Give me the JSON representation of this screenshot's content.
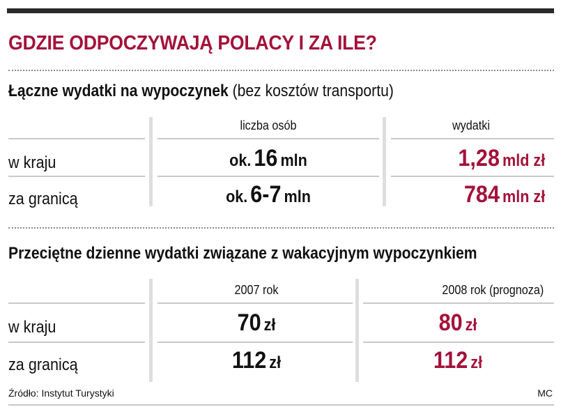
{
  "title": "GDZIE ODPOCZYWAJĄ POLACY I ZA ILE?",
  "chart_data": [
    {
      "type": "table",
      "title": "Łączne wydatki na wypoczynek",
      "subtitle": "(bez kosztów transportu)",
      "columns": [
        "liczba osób",
        "wydatki"
      ],
      "rows": [
        {
          "label": "w kraju",
          "cells": [
            {
              "prefix": "ok.",
              "value": "16",
              "unit": "mln"
            },
            {
              "prefix": "",
              "value": "1,28",
              "unit": "mld zł"
            }
          ]
        },
        {
          "label": "za granicą",
          "cells": [
            {
              "prefix": "ok.",
              "value": "6-7",
              "unit": "mln"
            },
            {
              "prefix": "",
              "value": "784",
              "unit": "mln zł"
            }
          ]
        }
      ]
    },
    {
      "type": "table",
      "title": "Przeciętne dzienne wydatki związane z wakacyjnym wypoczynkiem",
      "columns": [
        "2007 rok",
        "2008 rok (prognoza)"
      ],
      "rows": [
        {
          "label": "w kraju",
          "cells": [
            {
              "value": "70",
              "unit": "zł"
            },
            {
              "value": "80",
              "unit": "zł"
            }
          ]
        },
        {
          "label": "za granicą",
          "cells": [
            {
              "value": "112",
              "unit": "zł"
            },
            {
              "value": "112",
              "unit": "zł"
            }
          ]
        }
      ]
    }
  ],
  "footer": {
    "source": "Źródło: Instytut Turystyki",
    "author": "MC"
  },
  "colors": {
    "accent": "#a3123a",
    "text": "#111111",
    "rule": "#c8c8c8",
    "topbar": "#2a2a2a"
  }
}
